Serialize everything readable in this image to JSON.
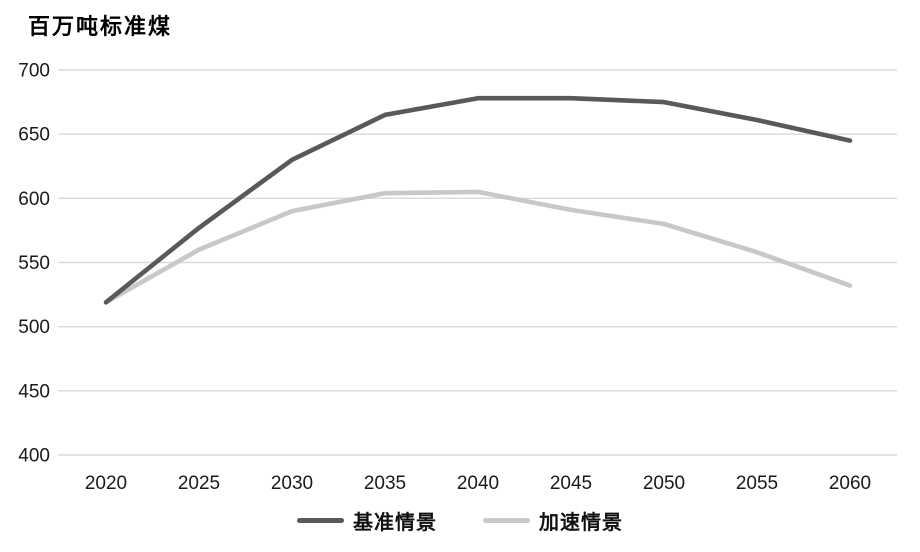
{
  "chart_title": "百万吨标准煤",
  "chart_data": {
    "type": "line",
    "title": "百万吨标准煤",
    "ylabel": "百万吨标准煤",
    "xlabel": "",
    "x": [
      2020,
      2025,
      2030,
      2035,
      2040,
      2045,
      2050,
      2055,
      2060
    ],
    "series": [
      {
        "name": "基准情景",
        "color": "#595959",
        "values": [
          519,
          577,
          630,
          665,
          678,
          678,
          675,
          661,
          645
        ]
      },
      {
        "name": "加速情景",
        "color": "#c8c8c8",
        "values": [
          519,
          560,
          590,
          604,
          605,
          591,
          580,
          558,
          532
        ]
      }
    ],
    "ylim": [
      400,
      700
    ],
    "yticks": [
      700,
      650,
      600,
      550,
      500,
      450,
      400
    ],
    "grid": "horizontal",
    "gridline_color": "#d9d9d9",
    "tick_label_color": "#1a1a1a",
    "legend_position": "bottom",
    "background_color": "#ffffff"
  }
}
